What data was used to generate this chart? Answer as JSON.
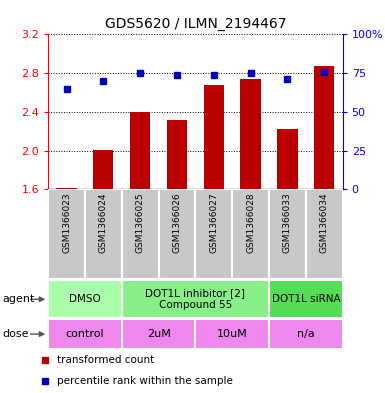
{
  "title": "GDS5620 / ILMN_2194467",
  "samples": [
    "GSM1366023",
    "GSM1366024",
    "GSM1366025",
    "GSM1366026",
    "GSM1366027",
    "GSM1366028",
    "GSM1366033",
    "GSM1366034"
  ],
  "bar_values": [
    1.62,
    2.01,
    2.4,
    2.32,
    2.68,
    2.74,
    2.22,
    2.87
  ],
  "dot_values_pct": [
    65,
    70,
    75,
    74,
    74,
    75,
    71,
    76
  ],
  "bar_bottom": 1.6,
  "ylim_left": [
    1.6,
    3.2
  ],
  "ylim_right": [
    0,
    100
  ],
  "yticks_left": [
    1.6,
    2.0,
    2.4,
    2.8,
    3.2
  ],
  "yticks_right": [
    0,
    25,
    50,
    75,
    100
  ],
  "bar_color": "#bb0000",
  "dot_color": "#0000bb",
  "agent_groups": [
    {
      "label": "DMSO",
      "span": [
        0,
        2
      ],
      "color": "#aaffaa"
    },
    {
      "label": "DOT1L inhibitor [2]\nCompound 55",
      "span": [
        2,
        6
      ],
      "color": "#88ee88"
    },
    {
      "label": "DOT1L siRNA",
      "span": [
        6,
        8
      ],
      "color": "#55dd55"
    }
  ],
  "dose_groups": [
    {
      "label": "control",
      "span": [
        0,
        2
      ],
      "color": "#ee88ee"
    },
    {
      "label": "2uM",
      "span": [
        2,
        4
      ],
      "color": "#ee88ee"
    },
    {
      "label": "10uM",
      "span": [
        4,
        6
      ],
      "color": "#ee88ee"
    },
    {
      "label": "n/a",
      "span": [
        6,
        8
      ],
      "color": "#ee88ee"
    }
  ],
  "legend_items": [
    {
      "label": "transformed count",
      "color": "#bb0000"
    },
    {
      "label": "percentile rank within the sample",
      "color": "#0000bb"
    }
  ],
  "sample_bg_color": "#c8c8c8",
  "bar_width": 0.55,
  "figsize": [
    3.85,
    3.93
  ],
  "dpi": 100
}
